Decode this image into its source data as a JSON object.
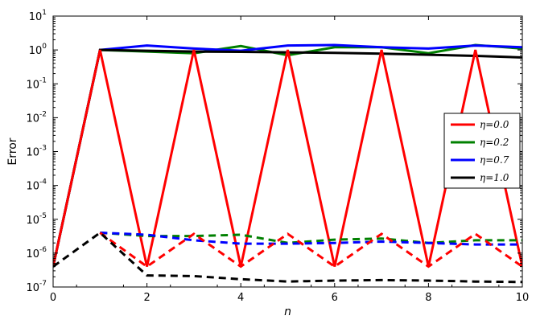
{
  "chart_data": {
    "type": "line",
    "title": "",
    "xlabel": "n",
    "ylabel": "Error",
    "xlim": [
      0,
      10
    ],
    "ylim_log10": [
      -7,
      1
    ],
    "y_scale": "log",
    "x_ticks": [
      "0",
      "2",
      "4",
      "6",
      "8",
      "10"
    ],
    "y_ticks": [
      {
        "base": "10",
        "exp": "1"
      },
      {
        "base": "10",
        "exp": "0"
      },
      {
        "base": "10",
        "exp": "-1"
      },
      {
        "base": "10",
        "exp": "-2"
      },
      {
        "base": "10",
        "exp": "-3"
      },
      {
        "base": "10",
        "exp": "-4"
      },
      {
        "base": "10",
        "exp": "-5"
      },
      {
        "base": "10",
        "exp": "-6"
      },
      {
        "base": "10",
        "exp": "-7"
      }
    ],
    "grid": false,
    "legend_position": "right",
    "x": [
      0,
      1,
      2,
      3,
      4,
      5,
      6,
      7,
      8,
      9,
      10
    ],
    "legend": [
      {
        "label": "η=0.0",
        "color": "#ff0000"
      },
      {
        "label": "η=0.2",
        "color": "#008000"
      },
      {
        "label": "η=0.7",
        "color": "#0000ff"
      },
      {
        "label": "η=1.0",
        "color": "#000000"
      }
    ],
    "series": [
      {
        "color": "#008000",
        "style": "solid",
        "values": [
          4e-07,
          1.0,
          0.9,
          0.8,
          1.3,
          0.7,
          1.2,
          1.2,
          0.8,
          1.4,
          1.1
        ]
      },
      {
        "color": "#0000ff",
        "style": "solid",
        "values": [
          4e-07,
          1.0,
          1.35,
          1.1,
          0.95,
          1.35,
          1.4,
          1.2,
          1.1,
          1.35,
          1.2
        ]
      },
      {
        "color": "#000000",
        "style": "solid",
        "values": [
          4e-07,
          1.0,
          0.95,
          0.9,
          0.88,
          0.85,
          0.82,
          0.78,
          0.72,
          0.67,
          0.6
        ]
      },
      {
        "color": "#ff0000",
        "style": "solid",
        "values": [
          4e-07,
          1.0,
          4e-07,
          1.0,
          4e-07,
          1.0,
          4e-07,
          1.0,
          4e-07,
          1.0,
          4e-07
        ]
      },
      {
        "color": "#008000",
        "style": "dashed",
        "values": [
          null,
          4e-06,
          3.2e-06,
          3.2e-06,
          3.5e-06,
          2e-06,
          2.5e-06,
          2.7e-06,
          2e-06,
          2.4e-06,
          2.4e-06
        ]
      },
      {
        "color": "#0000ff",
        "style": "dashed",
        "values": [
          null,
          4e-06,
          3.5e-06,
          2.4e-06,
          1.9e-06,
          1.9e-06,
          2e-06,
          2.2e-06,
          2e-06,
          1.8e-06,
          1.8e-06
        ]
      },
      {
        "color": "#ff0000",
        "style": "dashed",
        "values": [
          null,
          4e-06,
          4e-07,
          3.7e-06,
          4e-07,
          3.7e-06,
          4e-07,
          3.7e-06,
          4e-07,
          3.7e-06,
          4e-07
        ]
      },
      {
        "color": "#000000",
        "style": "dashed",
        "values": [
          4e-07,
          4e-06,
          2.2e-07,
          2.1e-07,
          1.7e-07,
          1.45e-07,
          1.55e-07,
          1.6e-07,
          1.55e-07,
          1.45e-07,
          1.4e-07
        ]
      }
    ]
  }
}
